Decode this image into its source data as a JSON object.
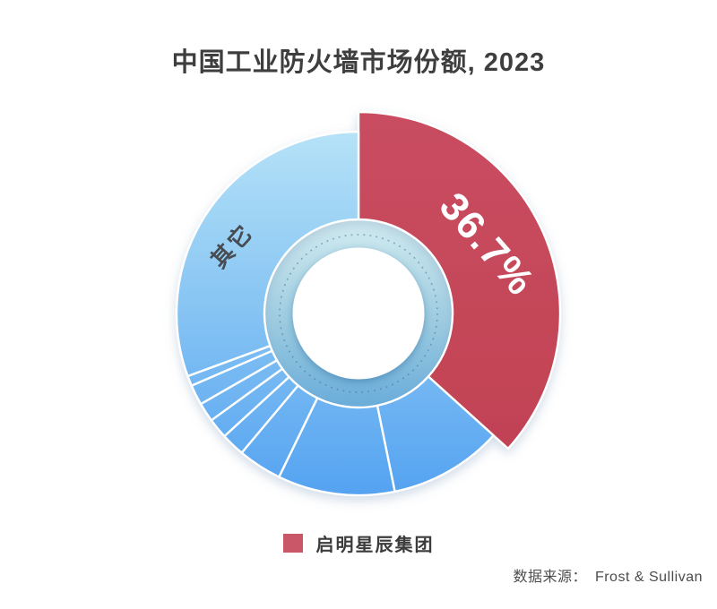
{
  "title": "中国工业防火墙市场份额, 2023",
  "legend": {
    "items": [
      {
        "label": "启明星辰集团",
        "color": "#c95767"
      }
    ]
  },
  "source": {
    "label": "数据来源：",
    "value": "Frost & Sullivan"
  },
  "colors": {
    "highlight_red": "#c6495c",
    "blue_top": "#b5e2f7",
    "blue_bottom": "#54a2f1",
    "ring_top": "#d3ecf0",
    "ring_bottom": "#68acda",
    "title_text": "#3e3e3e",
    "others_label_text": "#474c52",
    "background": "#ffffff"
  },
  "chart_data": {
    "type": "pie",
    "subtype": "donut",
    "title": "中国工业防火墙市场份额, 2023",
    "unit": "%",
    "start_angle_deg": 0,
    "clockwise": true,
    "legend_entries": [
      "启明星辰集团"
    ],
    "visible_labels": [
      "36.7%",
      "其它"
    ],
    "source": "Frost & Sullivan",
    "segments": [
      {
        "name": "启明星辰集团",
        "value": 36.7,
        "label": "36.7%",
        "highlighted": true
      },
      {
        "name": "",
        "value": 10.1,
        "label": ""
      },
      {
        "name": "",
        "value": 10.4,
        "label": ""
      },
      {
        "name": "",
        "value": 3.9,
        "label": ""
      },
      {
        "name": "",
        "value": 2.1,
        "label": ""
      },
      {
        "name": "",
        "value": 1.8,
        "label": ""
      },
      {
        "name": "",
        "value": 1.7,
        "label": ""
      },
      {
        "name": "",
        "value": 1.8,
        "label": ""
      },
      {
        "name": "",
        "value": 0.9,
        "label": ""
      },
      {
        "name": "其它",
        "value": 30.6,
        "label": "其它"
      }
    ],
    "others_total": 63.3,
    "note": "only 36.7% (启明星辰集团) and 其它 are labeled; unnamed blue sub-slice values estimated from arc angles"
  }
}
